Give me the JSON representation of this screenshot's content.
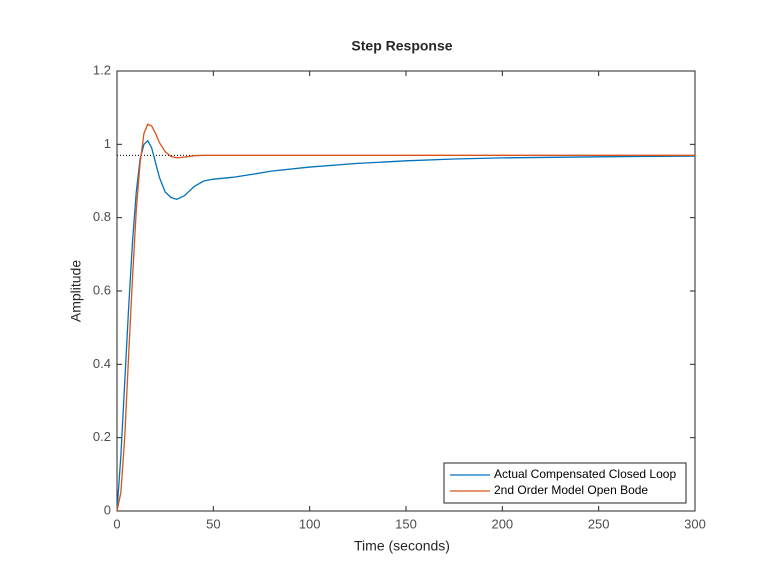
{
  "chart_data": {
    "type": "line",
    "title": "Step Response",
    "x_label": "Time (seconds)",
    "y_label": "Amplitude",
    "xlim": [
      0,
      300
    ],
    "xticks": [
      0,
      50,
      100,
      150,
      200,
      250,
      300
    ],
    "ylim": [
      0,
      1.2
    ],
    "yticks": [
      0,
      0.2,
      0.4,
      0.6,
      0.8,
      1,
      1.2
    ],
    "legend": "lower right",
    "reference_line": {
      "value": 0.97,
      "x": [
        0,
        45
      ]
    },
    "series": [
      {
        "name": "Actual Compensated Closed Loop",
        "color": "#0072bd",
        "x": [
          0,
          2,
          4,
          6,
          8,
          10,
          12,
          14,
          16,
          18,
          20,
          22,
          25,
          28,
          31,
          35,
          40,
          45,
          50,
          60,
          70,
          80,
          100,
          125,
          150,
          175,
          200,
          250,
          300
        ],
        "values": [
          0,
          0.15,
          0.35,
          0.55,
          0.73,
          0.87,
          0.96,
          1.0,
          1.01,
          0.99,
          0.95,
          0.91,
          0.87,
          0.855,
          0.85,
          0.86,
          0.885,
          0.9,
          0.905,
          0.91,
          0.918,
          0.927,
          0.938,
          0.948,
          0.955,
          0.96,
          0.963,
          0.966,
          0.968
        ]
      },
      {
        "name": "2nd Order Model Open Bode",
        "color": "#d95319",
        "x": [
          0,
          2,
          4,
          6,
          8,
          10,
          12,
          14,
          16,
          18,
          20,
          22,
          25,
          28,
          31,
          35,
          40,
          45,
          50,
          100,
          200,
          300
        ],
        "values": [
          0,
          0.05,
          0.2,
          0.42,
          0.63,
          0.82,
          0.95,
          1.03,
          1.055,
          1.05,
          1.03,
          1.005,
          0.98,
          0.967,
          0.963,
          0.965,
          0.969,
          0.97,
          0.97,
          0.97,
          0.97,
          0.97
        ]
      }
    ]
  }
}
